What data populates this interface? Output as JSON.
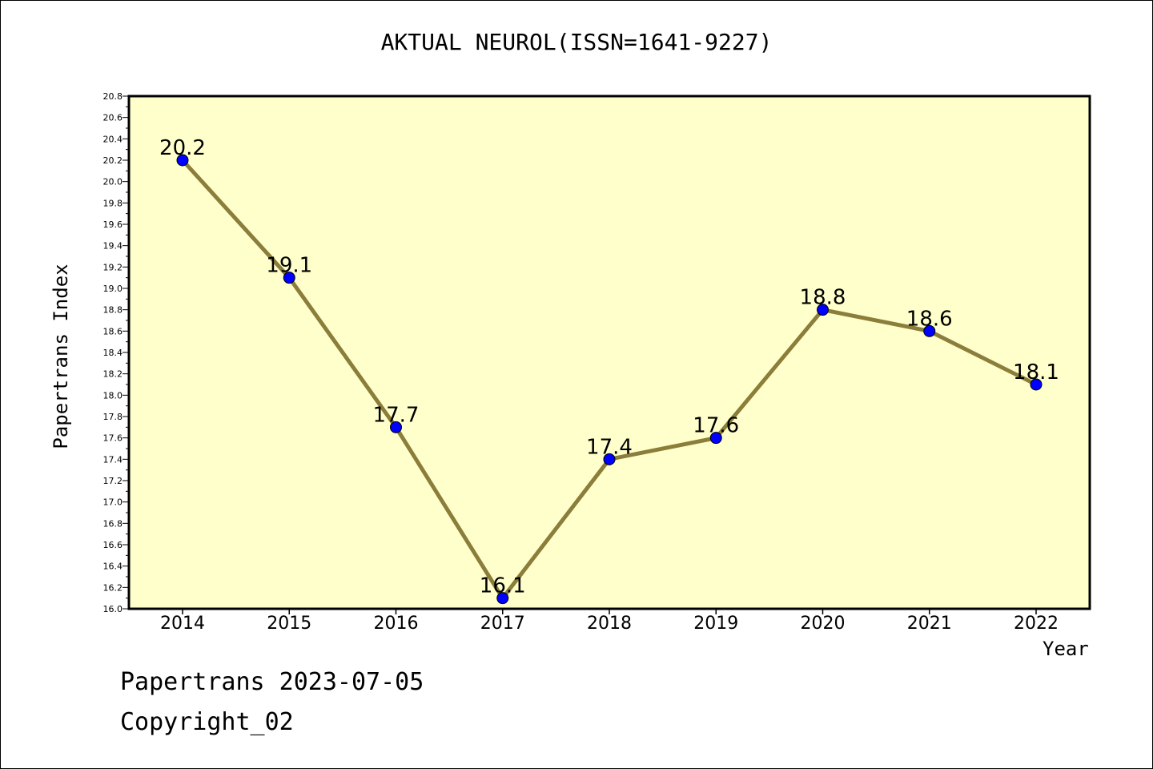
{
  "chart_data": {
    "type": "line",
    "title": "AKTUAL NEUROL(ISSN=1641-9227)",
    "xlabel": "Year",
    "ylabel": "Papertrans Index",
    "categories": [
      "2014",
      "2015",
      "2016",
      "2017",
      "2018",
      "2019",
      "2020",
      "2021",
      "2022"
    ],
    "series": [
      {
        "values": [
          20.2,
          19.1,
          17.7,
          16.1,
          17.4,
          17.6,
          18.8,
          18.6,
          18.1
        ]
      }
    ],
    "data_labels": [
      "20.2",
      "19.1",
      "17.7",
      "16.1",
      "17.4",
      "17.6",
      "18.8",
      "18.6",
      "18.1"
    ],
    "ylim": [
      16.0,
      20.8
    ],
    "yticks": [
      "16.0",
      "16.2",
      "16.4",
      "16.6",
      "16.8",
      "17.0",
      "17.2",
      "17.4",
      "17.6",
      "17.8",
      "18.0",
      "18.2",
      "18.4",
      "18.6",
      "18.8",
      "19.0",
      "19.2",
      "19.4",
      "19.6",
      "19.8",
      "20.0",
      "20.2",
      "20.4",
      "20.6",
      "20.8"
    ],
    "grid": false,
    "colors": {
      "plot_background": "#ffffcc",
      "line": "#8b7d3a",
      "marker": "#0000ff"
    }
  },
  "footer": {
    "date_text": "Papertrans 2023-07-05",
    "copyright_text": "Copyright_02"
  }
}
